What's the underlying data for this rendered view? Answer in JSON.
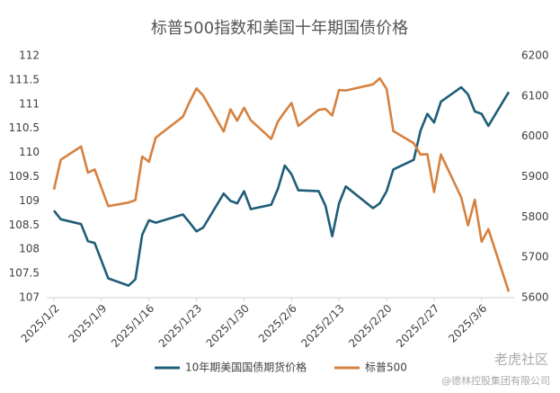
{
  "chart_data": {
    "type": "line",
    "title": "标普500指数和美国十年期国债价格",
    "x": [
      "2025/1/2",
      "2025/1/3",
      "2025/1/6",
      "2025/1/7",
      "2025/1/8",
      "2025/1/10",
      "2025/1/13",
      "2025/1/14",
      "2025/1/15",
      "2025/1/16",
      "2025/1/17",
      "2025/1/21",
      "2025/1/22",
      "2025/1/23",
      "2025/1/24",
      "2025/1/27",
      "2025/1/28",
      "2025/1/29",
      "2025/1/30",
      "2025/1/31",
      "2025/2/3",
      "2025/2/4",
      "2025/2/5",
      "2025/2/6",
      "2025/2/7",
      "2025/2/10",
      "2025/2/11",
      "2025/2/12",
      "2025/2/13",
      "2025/2/14",
      "2025/2/18",
      "2025/2/19",
      "2025/2/20",
      "2025/2/21",
      "2025/2/24",
      "2025/2/25",
      "2025/2/26",
      "2025/2/27",
      "2025/2/28",
      "2025/3/3",
      "2025/3/4",
      "2025/3/5",
      "2025/3/6",
      "2025/3/7",
      "2025/3/10"
    ],
    "xlim": [
      "2025/1/2",
      "2025/3/10"
    ],
    "xticks": [
      "2025/1/2",
      "2025/1/9",
      "2025/1/16",
      "2025/1/23",
      "2025/1/30",
      "2025/2/6",
      "2025/2/13",
      "2025/2/20",
      "2025/2/27",
      "2025/3/6"
    ],
    "ylim": [
      107,
      112
    ],
    "yticks": [
      107,
      107.5,
      108,
      108.5,
      109,
      109.5,
      110,
      110.5,
      111,
      111.5,
      112
    ],
    "y2lim": [
      5600,
      6200
    ],
    "y2ticks": [
      5600,
      5700,
      5800,
      5900,
      6000,
      6100,
      6200
    ],
    "series": [
      {
        "name": "10年期美国国债期货价格",
        "color": "#1f5d78",
        "values": [
          108.8,
          108.62,
          108.52,
          108.17,
          108.13,
          107.4,
          107.25,
          107.38,
          108.3,
          108.6,
          108.55,
          108.72,
          108.55,
          108.37,
          108.45,
          109.15,
          109.0,
          108.95,
          109.2,
          108.83,
          108.92,
          109.25,
          109.73,
          109.55,
          109.22,
          109.2,
          108.9,
          108.27,
          108.95,
          109.3,
          108.85,
          108.95,
          109.2,
          109.65,
          109.85,
          110.45,
          110.8,
          110.62,
          111.05,
          111.35,
          111.2,
          110.85,
          110.8,
          110.55,
          111.25
        ]
      },
      {
        "name": "标普500",
        "color": "#d6813f",
        "axis": "y2",
        "values": [
          5868,
          5942,
          5975,
          5910,
          5918,
          5827,
          5836,
          5842,
          5950,
          5937,
          5997,
          6049,
          6086,
          6119,
          6101,
          6012,
          6067,
          6039,
          6071,
          6040,
          5994,
          6037,
          6061,
          6083,
          6026,
          6066,
          6068,
          6052,
          6115,
          6114,
          6129,
          6144,
          6118,
          6013,
          5983,
          5955,
          5956,
          5862,
          5955,
          5849,
          5779,
          5843,
          5739,
          5770,
          5615
        ]
      }
    ],
    "watermark": [
      "老虎社区",
      "@德林控股集团有限公司"
    ]
  }
}
